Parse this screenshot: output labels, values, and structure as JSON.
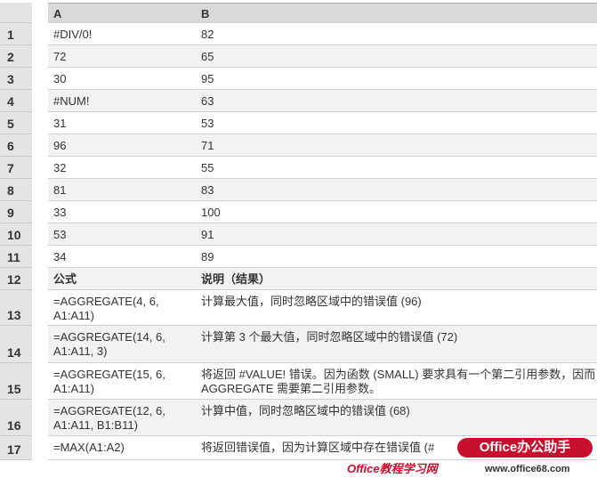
{
  "columns": [
    "A",
    "B"
  ],
  "row_numbers": [
    "1",
    "2",
    "3",
    "4",
    "5",
    "6",
    "7",
    "8",
    "9",
    "10",
    "11",
    "12",
    "13",
    "14",
    "15",
    "16",
    "17"
  ],
  "data_rows": [
    [
      "#DIV/0!",
      "82"
    ],
    [
      "72",
      "65"
    ],
    [
      "30",
      "95"
    ],
    [
      "#NUM!",
      "63"
    ],
    [
      "31",
      "53"
    ],
    [
      "96",
      "71"
    ],
    [
      "32",
      "55"
    ],
    [
      "81",
      "83"
    ],
    [
      "33",
      "100"
    ],
    [
      "53",
      "91"
    ],
    [
      "34",
      "89"
    ]
  ],
  "formula_header": [
    "公式",
    "说明（结果）"
  ],
  "formula_rows": [
    [
      "=AGGREGATE(4, 6, A1:A11)",
      "计算最大值，同时忽略区域中的错误值 (96)"
    ],
    [
      "=AGGREGATE(14, 6, A1:A11, 3)",
      "计算第 3 个最大值，同时忽略区域中的错误值 (72)"
    ],
    [
      "=AGGREGATE(15, 6, A1:A11)",
      "将返回 #VALUE! 错误。因为函数 (SMALL) 要求具有一个第二引用参数，因而 AGGREGATE 需要第二引用参数。"
    ],
    [
      "=AGGREGATE(12, 6, A1:A11, B1:B11)",
      "计算中值，同时忽略区域中的错误值 (68)"
    ],
    [
      "=MAX(A1:A2)",
      "将返回错误值，因为计算区域中存在错误值 (#"
    ]
  ],
  "watermark": {
    "line1": "Office办公助手",
    "line2": "Office教程学习网",
    "url": "www.office68.com"
  }
}
